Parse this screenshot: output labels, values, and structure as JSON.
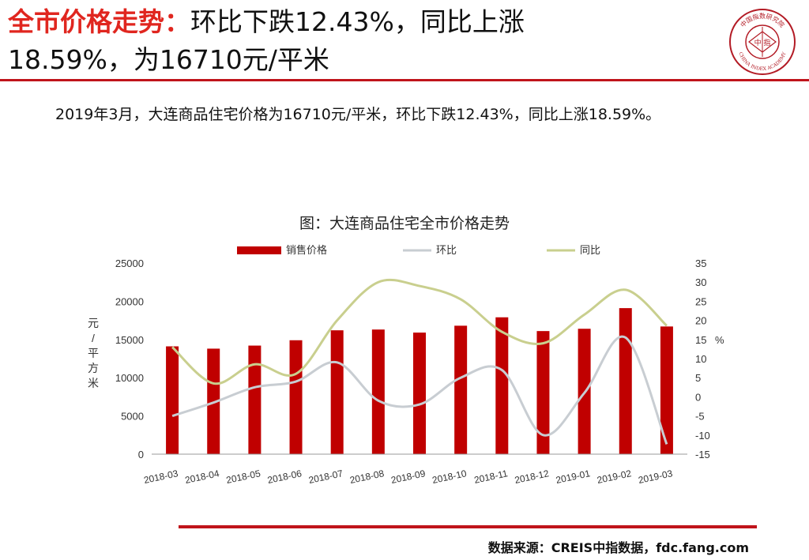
{
  "header": {
    "title_red": "全市价格走势：",
    "title_line1": "环比下跌12.43%，同比上涨",
    "title_line2": "18.59%，为16710元/平米"
  },
  "logo": {
    "text_top": "中国指数研究院",
    "text_bottom": "CHINA INDEX ACADEMY",
    "center": "中 指"
  },
  "summary": "2019年3月，大连商品住宅价格为16710元/平米，环比下跌12.43%，同比上涨18.59%。",
  "chart_data": {
    "type": "bar",
    "title": "图：大连商品住宅全市价格走势",
    "categories": [
      "2018-03",
      "2018-04",
      "2018-05",
      "2018-06",
      "2018-07",
      "2018-08",
      "2018-09",
      "2018-10",
      "2018-11",
      "2018-12",
      "2019-01",
      "2019-02",
      "2019-03"
    ],
    "series": [
      {
        "name": "销售价格",
        "type": "bar",
        "axis": "left",
        "color": "#c00000",
        "values": [
          14100,
          13800,
          14200,
          14900,
          16200,
          16300,
          15900,
          16800,
          17900,
          16100,
          16400,
          19100,
          16700
        ]
      },
      {
        "name": "环比",
        "type": "line",
        "axis": "right",
        "color": "#c8cdd2",
        "values": [
          -5,
          -1.5,
          2.5,
          4,
          9,
          -1,
          -2,
          5,
          7,
          -10,
          1,
          15.5,
          -12.4
        ]
      },
      {
        "name": "同比",
        "type": "line",
        "axis": "right",
        "color": "#c9cf8e",
        "values": [
          13,
          3.5,
          8.5,
          6,
          20,
          30,
          29,
          25.5,
          17,
          14,
          21.5,
          28,
          18.6
        ]
      }
    ],
    "ylabel": "元/平方米",
    "y2label": "%",
    "ylim": [
      0,
      25000
    ],
    "y2lim": [
      -15,
      35
    ],
    "yticks": [
      0,
      5000,
      10000,
      15000,
      20000,
      25000
    ],
    "y2ticks": [
      -15,
      -10,
      -5,
      0,
      5,
      10,
      15,
      20,
      25,
      30,
      35
    ],
    "legend_position": "top",
    "grid": false
  },
  "source": "数据来源：CREIS中指数据，fdc.fang.com"
}
